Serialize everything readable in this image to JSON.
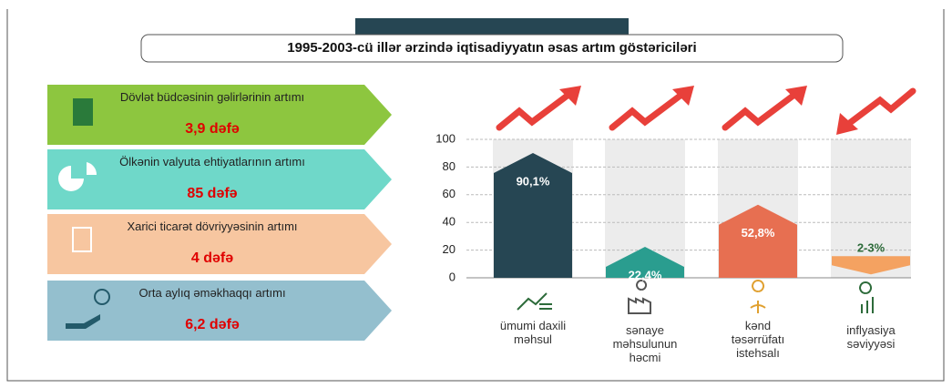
{
  "title": "1995-2003-cü illər ərzində iqtisadiyyatın əsas artım göstəriciləri",
  "items": [
    {
      "label": "Dövlət büdcəsinin gəlirlərinin artımı",
      "value": "3,9 dəfə",
      "color": "#8dc63f"
    },
    {
      "label": "Ölkənin valyuta ehtiyatlarının artımı",
      "value": "85 dəfə",
      "color": "#6fd8c9"
    },
    {
      "label": "Xarici ticarət dövriyyəsinin artımı",
      "value": "4 dəfə",
      "color": "#f7c6a0"
    },
    {
      "label": "Orta aylıq əməkhaqqı artımı",
      "value": "6,2 dəfə",
      "color": "#94bfce"
    }
  ],
  "chart_data": {
    "type": "bar",
    "categories": [
      "ümumi daxili məhsul",
      "sənaye məhsulunun həcmi",
      "kənd təsərrüfatı istehsalı",
      "inflyasiya səviyyəsi"
    ],
    "values": [
      90.1,
      22.4,
      52.8,
      2.5
    ],
    "value_labels": [
      "90,1%",
      "22,4%",
      "52,8%",
      "2-3%"
    ],
    "colors": [
      "#264653",
      "#2a9d8f",
      "#e76f51",
      "#f4a261"
    ],
    "arrow_direction": [
      "up",
      "up",
      "up",
      "down"
    ],
    "ylim": [
      0,
      100
    ],
    "yticks": [
      0,
      20,
      40,
      60,
      80,
      100
    ],
    "grid": true
  }
}
